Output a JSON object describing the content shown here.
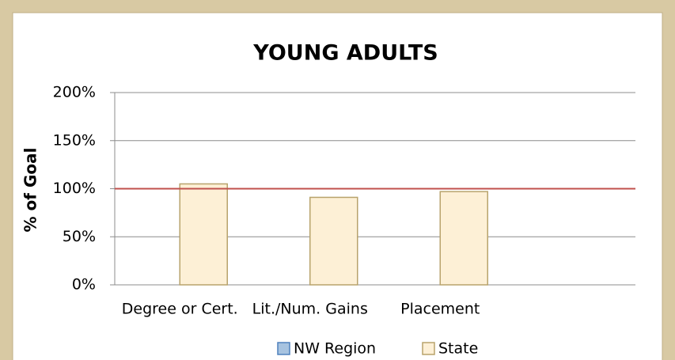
{
  "chart_data": {
    "type": "bar",
    "title": "YOUNG ADULTS",
    "y_label": "% of Goal",
    "categories": [
      "Degree or Cert.",
      "Lit./Num. Gains",
      "Placement",
      null
    ],
    "series": [
      {
        "name": "NW Region",
        "color": "#a7c3e0",
        "values": [
          null,
          null,
          null,
          null
        ]
      },
      {
        "name": "State",
        "color": "#fdf0d6",
        "values": [
          105,
          91,
          97,
          null
        ]
      }
    ],
    "goal_line": 100,
    "goal_color": "#c0504d",
    "ylim": [
      0,
      200
    ],
    "yticks": [
      {
        "value": 0,
        "label": "0%"
      },
      {
        "value": 50,
        "label": "50%"
      },
      {
        "value": 100,
        "label": "100%"
      },
      {
        "value": 150,
        "label": "150%"
      },
      {
        "value": 200,
        "label": "200%"
      }
    ],
    "grid": true,
    "legend": "bottom"
  }
}
